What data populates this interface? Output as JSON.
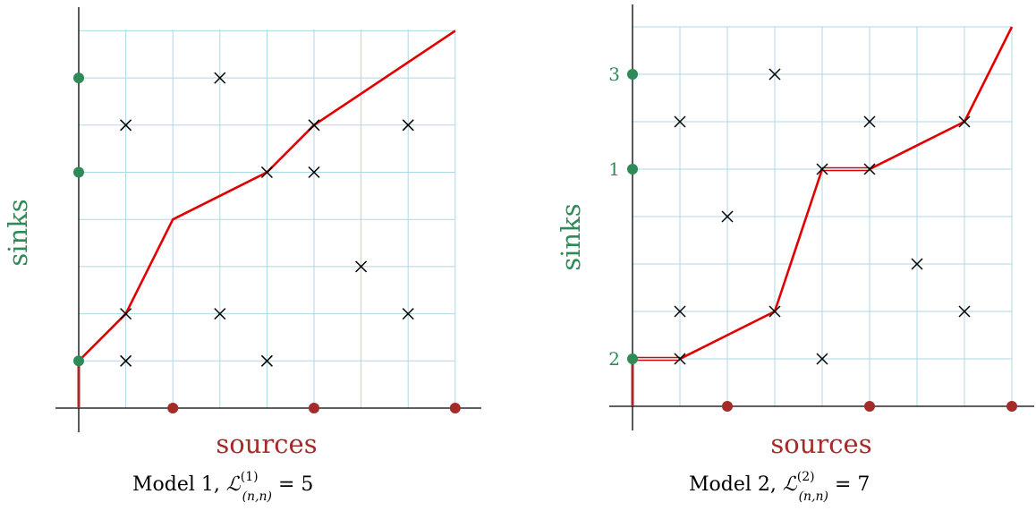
{
  "colors": {
    "sinks": "#2e8b57",
    "sources": "#a52a2a",
    "path": "#e00000",
    "grid": "#add8e6",
    "cross": "#000000"
  },
  "panels": [
    {
      "id": "model-1",
      "ylabel": "sinks",
      "xlabel": "sources",
      "caption": {
        "prefix": "Model 1, ",
        "symbol": "ℒ",
        "superscript": "(1)",
        "subscript": "(n,n)",
        "suffix": " = 5"
      },
      "grid": {
        "cols": 8,
        "rows": 8
      },
      "crosses": [
        [
          1,
          1
        ],
        [
          1,
          2
        ],
        [
          1,
          6
        ],
        [
          3,
          2
        ],
        [
          3,
          7
        ],
        [
          4,
          1
        ],
        [
          4,
          5
        ],
        [
          5,
          5
        ],
        [
          5,
          6
        ],
        [
          6,
          3
        ],
        [
          7,
          2
        ],
        [
          7,
          6
        ]
      ],
      "sinks": [
        {
          "y": 1,
          "label": ""
        },
        {
          "y": 5,
          "label": ""
        },
        {
          "y": 7,
          "label": ""
        }
      ],
      "sources": [
        2,
        5,
        8
      ],
      "path": [
        [
          0,
          1
        ],
        [
          1,
          2
        ],
        [
          2,
          4
        ],
        [
          4,
          5
        ],
        [
          5,
          6
        ],
        [
          8,
          8
        ]
      ],
      "double_segments": [],
      "vertical_start": [
        0,
        0,
        1
      ]
    },
    {
      "id": "model-2",
      "ylabel": "sinks",
      "xlabel": "sources",
      "caption": {
        "prefix": "Model 2, ",
        "symbol": "ℒ",
        "superscript": "(2)",
        "subscript": "(n,n)",
        "suffix": " = 7"
      },
      "grid": {
        "cols": 8,
        "rows": 8
      },
      "crosses": [
        [
          1,
          1
        ],
        [
          1,
          2
        ],
        [
          1,
          6
        ],
        [
          2,
          4
        ],
        [
          3,
          2
        ],
        [
          3,
          7
        ],
        [
          4,
          1
        ],
        [
          4,
          5
        ],
        [
          5,
          5
        ],
        [
          5,
          6
        ],
        [
          6,
          3
        ],
        [
          7,
          2
        ],
        [
          7,
          6
        ]
      ],
      "sinks": [
        {
          "y": 1,
          "label": "2"
        },
        {
          "y": 5,
          "label": "1"
        },
        {
          "y": 7,
          "label": "3"
        }
      ],
      "sources": [
        2,
        5,
        8
      ],
      "path": [
        [
          0,
          1
        ],
        [
          1,
          1
        ],
        [
          3,
          2
        ],
        [
          4,
          5
        ],
        [
          5,
          5
        ],
        [
          7,
          6
        ],
        [
          8,
          8
        ]
      ],
      "double_segments": [
        [
          [
            0,
            1
          ],
          [
            1,
            1
          ]
        ],
        [
          [
            4,
            5
          ],
          [
            5,
            5
          ]
        ]
      ],
      "vertical_start": [
        0,
        0,
        1
      ]
    }
  ]
}
